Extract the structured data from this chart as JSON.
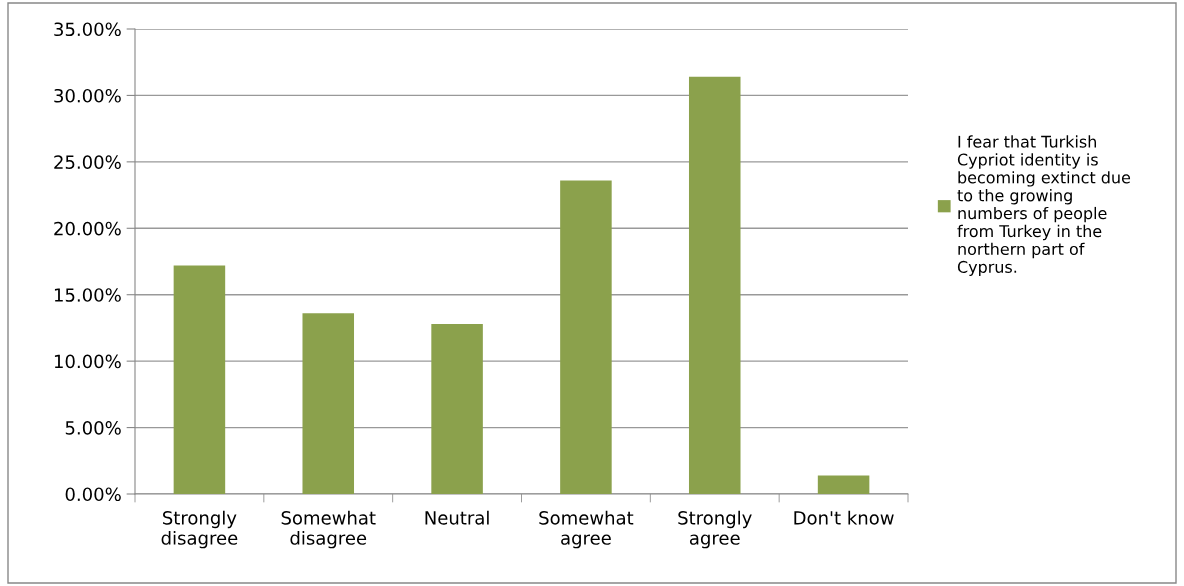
{
  "chart_data": {
    "type": "bar",
    "categories": [
      "Strongly\ndisagree",
      "Somewhat\ndisagree",
      "Neutral",
      "Somewhat\nagree",
      "Strongly\nagree",
      "Don't know"
    ],
    "series": [
      {
        "name": "I fear that Turkish\nCypriot identity is\nbecoming extinct due\nto the growing\nnumbers of people\nfrom Turkey in the\nnorthern part of\nCyprus.",
        "color": "#8ba14c",
        "values": [
          17.2,
          13.6,
          12.8,
          23.6,
          31.4,
          1.4
        ]
      }
    ],
    "ylim": [
      0,
      35
    ],
    "yticks": [
      {
        "value": 0,
        "label": "0.00%"
      },
      {
        "value": 5,
        "label": "5.00%"
      },
      {
        "value": 10,
        "label": "10.00%"
      },
      {
        "value": 15,
        "label": "15.00%"
      },
      {
        "value": 20,
        "label": "20.00%"
      },
      {
        "value": 25,
        "label": "25.00%"
      },
      {
        "value": 30,
        "label": "30.00%"
      },
      {
        "value": 35,
        "label": "35.00%"
      }
    ],
    "grid": "y",
    "legend": "right"
  }
}
